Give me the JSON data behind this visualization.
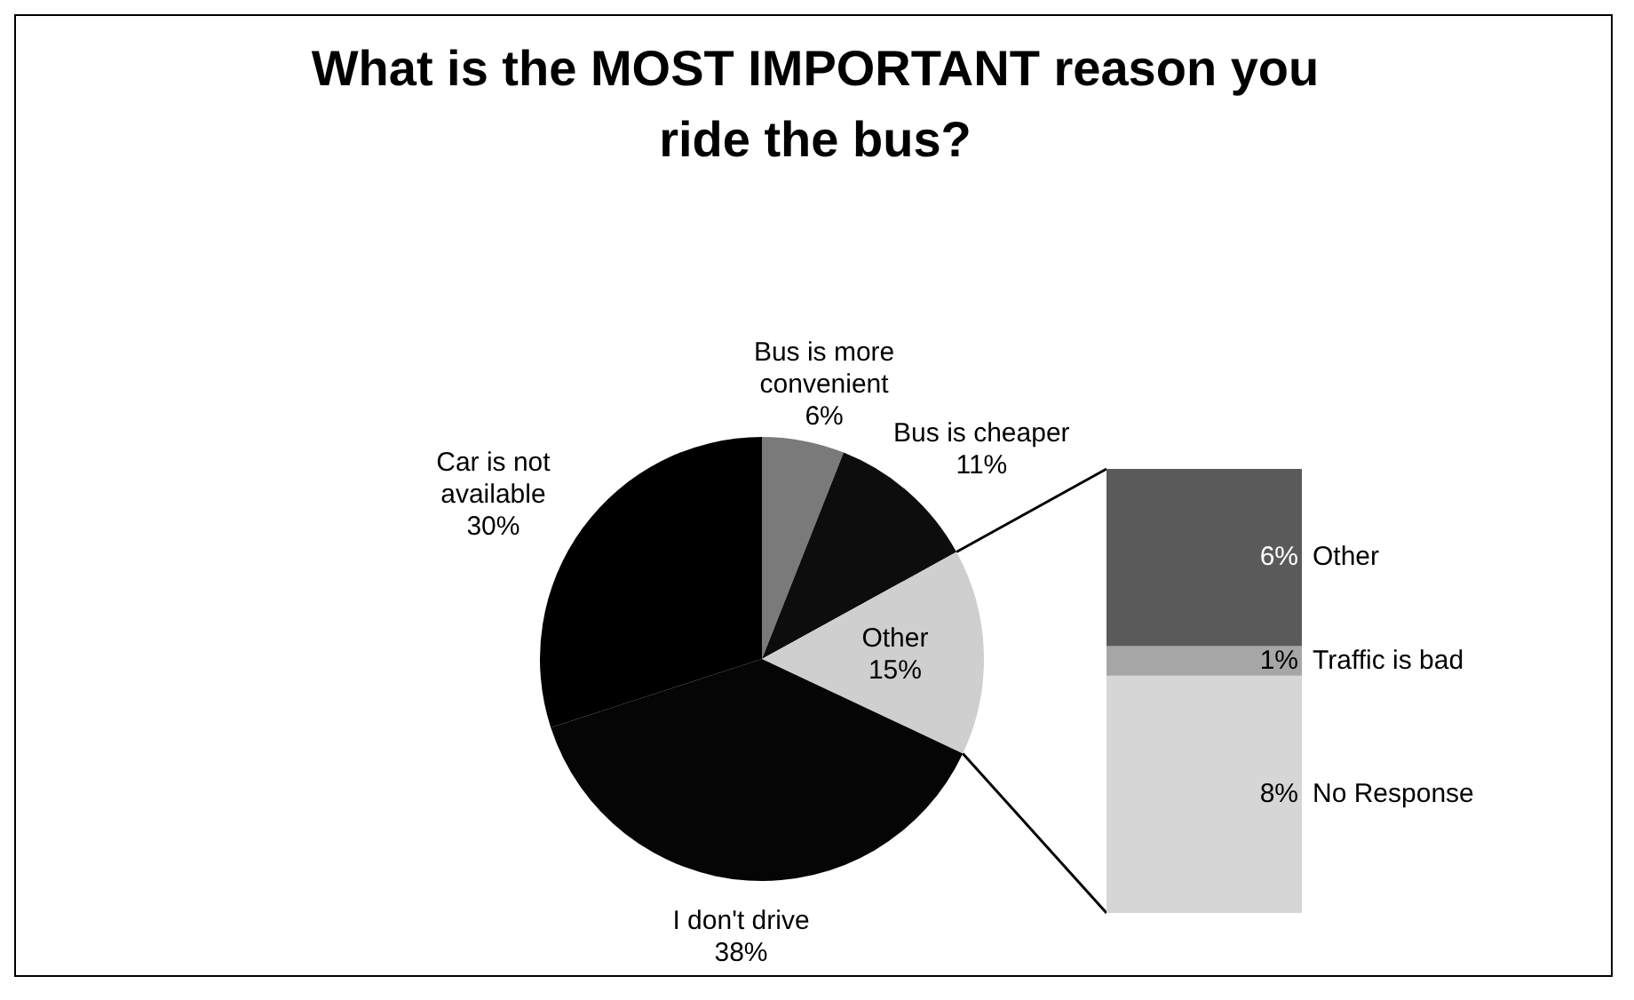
{
  "chart_data": [
    {
      "type": "pie",
      "title": "What is the MOST IMPORTANT reason you ride the bus?",
      "categories": [
        "Bus is more convenient",
        "Bus is cheaper",
        "Other",
        "I don't drive",
        "Car is not available"
      ],
      "values": [
        6,
        11,
        15,
        38,
        30
      ],
      "value_labels": [
        "6%",
        "11%",
        "15%",
        "38%",
        "30%"
      ],
      "colors": [
        "#7a7a7a",
        "#0d0d0d",
        "#cfcfcf",
        "#050505",
        "#000000"
      ]
    },
    {
      "type": "bar",
      "stacked": true,
      "categories": [
        null
      ],
      "tick_labels": false,
      "series": [
        {
          "name": "No Response",
          "color": "#d6d6d6",
          "values": [
            8
          ],
          "value_labels": [
            "8%"
          ]
        },
        {
          "name": "Traffic is bad",
          "color": "#a6a6a6",
          "values": [
            1
          ],
          "value_labels": [
            "1%"
          ]
        },
        {
          "name": "Other",
          "color": "#5a5a5a",
          "values": [
            6
          ],
          "value_labels": [
            "6%"
          ]
        }
      ]
    }
  ]
}
